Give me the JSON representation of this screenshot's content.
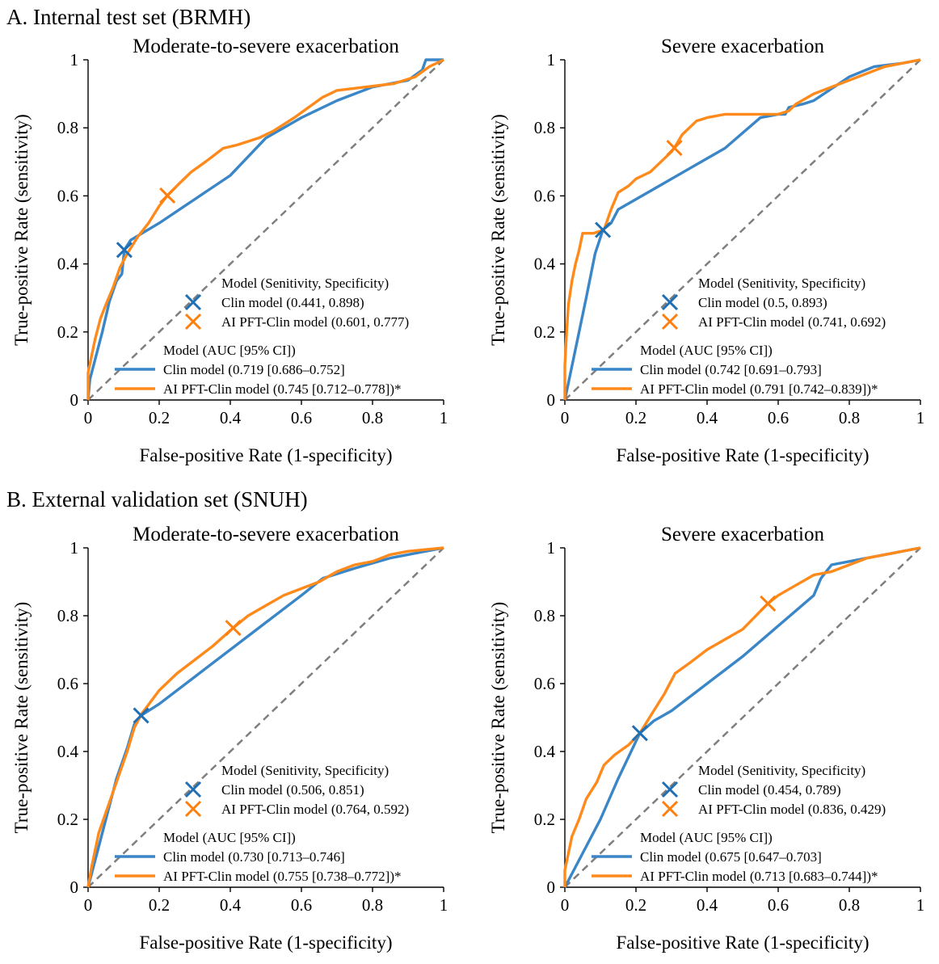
{
  "colors": {
    "clin": "#3a86c6",
    "ai": "#ff8a1c",
    "clin_marker": "#1f6fb4",
    "ai_marker": "#ff7f0e",
    "diag": "#7f7f7f"
  },
  "sections": [
    {
      "title": "A. Internal test set (BRMH)"
    },
    {
      "title": "B. External validation set (SNUH)"
    }
  ],
  "axes": {
    "xlabel": "False-positive Rate (1-specificity)",
    "ylabel": "True-positive Rate (sensitivity)",
    "xticks": [
      0,
      0.2,
      0.4,
      0.6,
      0.8,
      1
    ],
    "yticks": [
      0,
      0.2,
      0.4,
      0.6,
      0.8,
      1
    ],
    "xtick_labels": [
      "0",
      "0.2",
      "0.4",
      "0.6",
      "0.8",
      "1"
    ],
    "ytick_labels": [
      "0",
      "0.2",
      "0.4",
      "0.6",
      "0.8",
      "1"
    ]
  },
  "chart_data": [
    {
      "type": "line",
      "title": "Moderate-to-severe exacerbation",
      "xlabel": "False-positive Rate (1-specificity)",
      "ylabel": "True-positive Rate (sensitivity)",
      "xlim": [
        0,
        1
      ],
      "ylim": [
        0,
        1
      ],
      "marker_legend": {
        "title": "Model (Senitivity, Specificity)",
        "entries": [
          {
            "series": "clin",
            "label": "Clin model (0.441, 0.898)"
          },
          {
            "series": "ai",
            "label": "AI PFT-Clin model (0.601, 0.777)"
          }
        ]
      },
      "line_legend": {
        "title": "Model (AUC [95% CI])",
        "entries": [
          {
            "series": "clin",
            "label": "Clin model (0.719 [0.686–0.752]"
          },
          {
            "series": "ai",
            "label": "AI PFT-Clin model (0.745 [0.712–0.778])*"
          }
        ]
      },
      "markers": [
        {
          "series": "clin",
          "x": 0.102,
          "y": 0.441
        },
        {
          "series": "ai",
          "x": 0.223,
          "y": 0.601
        }
      ],
      "series": [
        {
          "key": "clin",
          "points": [
            [
              0,
              0
            ],
            [
              0.005,
              0.06
            ],
            [
              0.02,
              0.12
            ],
            [
              0.04,
              0.2
            ],
            [
              0.06,
              0.29
            ],
            [
              0.08,
              0.35
            ],
            [
              0.095,
              0.37
            ],
            [
              0.102,
              0.441
            ],
            [
              0.12,
              0.47
            ],
            [
              0.2,
              0.52
            ],
            [
              0.3,
              0.59
            ],
            [
              0.4,
              0.66
            ],
            [
              0.5,
              0.77
            ],
            [
              0.6,
              0.83
            ],
            [
              0.7,
              0.88
            ],
            [
              0.8,
              0.92
            ],
            [
              0.9,
              0.94
            ],
            [
              0.94,
              0.97
            ],
            [
              0.95,
              1.0
            ],
            [
              1,
              1
            ]
          ]
        },
        {
          "key": "ai",
          "points": [
            [
              0,
              0
            ],
            [
              0,
              0.08
            ],
            [
              0.01,
              0.13
            ],
            [
              0.02,
              0.18
            ],
            [
              0.035,
              0.24
            ],
            [
              0.05,
              0.28
            ],
            [
              0.07,
              0.33
            ],
            [
              0.09,
              0.39
            ],
            [
              0.11,
              0.43
            ],
            [
              0.14,
              0.48
            ],
            [
              0.17,
              0.52
            ],
            [
              0.2,
              0.57
            ],
            [
              0.223,
              0.601
            ],
            [
              0.26,
              0.64
            ],
            [
              0.29,
              0.67
            ],
            [
              0.33,
              0.7
            ],
            [
              0.38,
              0.74
            ],
            [
              0.42,
              0.75
            ],
            [
              0.48,
              0.77
            ],
            [
              0.52,
              0.79
            ],
            [
              0.58,
              0.83
            ],
            [
              0.62,
              0.86
            ],
            [
              0.66,
              0.89
            ],
            [
              0.7,
              0.91
            ],
            [
              0.78,
              0.92
            ],
            [
              0.86,
              0.93
            ],
            [
              0.92,
              0.95
            ],
            [
              0.96,
              0.98
            ],
            [
              1,
              1
            ]
          ]
        }
      ]
    },
    {
      "type": "line",
      "title": "Severe exacerbation",
      "xlabel": "False-positive Rate (1-specificity)",
      "ylabel": "True-positive Rate (sensitivity)",
      "xlim": [
        0,
        1
      ],
      "ylim": [
        0,
        1
      ],
      "marker_legend": {
        "title": "Model (Senitivity, Specificity)",
        "entries": [
          {
            "series": "clin",
            "label": "Clin model (0.5, 0.893)"
          },
          {
            "series": "ai",
            "label": "AI PFT-Clin model (0.741, 0.692)"
          }
        ]
      },
      "line_legend": {
        "title": "Model (AUC [95% CI])",
        "entries": [
          {
            "series": "clin",
            "label": "Clin model (0.742 [0.691–0.793]"
          },
          {
            "series": "ai",
            "label": "AI PFT-Clin model (0.791 [0.742–0.839])*"
          }
        ]
      },
      "markers": [
        {
          "series": "clin",
          "x": 0.107,
          "y": 0.5
        },
        {
          "series": "ai",
          "x": 0.308,
          "y": 0.741
        }
      ],
      "series": [
        {
          "key": "clin",
          "points": [
            [
              0,
              0
            ],
            [
              0.03,
              0.15
            ],
            [
              0.06,
              0.3
            ],
            [
              0.085,
              0.43
            ],
            [
              0.107,
              0.5
            ],
            [
              0.13,
              0.52
            ],
            [
              0.15,
              0.56
            ],
            [
              0.25,
              0.62
            ],
            [
              0.35,
              0.68
            ],
            [
              0.45,
              0.74
            ],
            [
              0.55,
              0.83
            ],
            [
              0.6,
              0.84
            ],
            [
              0.62,
              0.84
            ],
            [
              0.63,
              0.86
            ],
            [
              0.67,
              0.87
            ],
            [
              0.7,
              0.88
            ],
            [
              0.8,
              0.95
            ],
            [
              0.87,
              0.98
            ],
            [
              0.95,
              0.99
            ],
            [
              1,
              1
            ]
          ]
        },
        {
          "key": "ai",
          "points": [
            [
              0,
              0
            ],
            [
              0,
              0.1
            ],
            [
              0.005,
              0.2
            ],
            [
              0.01,
              0.28
            ],
            [
              0.02,
              0.35
            ],
            [
              0.03,
              0.4
            ],
            [
              0.04,
              0.44
            ],
            [
              0.05,
              0.49
            ],
            [
              0.08,
              0.49
            ],
            [
              0.11,
              0.5
            ],
            [
              0.13,
              0.56
            ],
            [
              0.15,
              0.61
            ],
            [
              0.18,
              0.63
            ],
            [
              0.2,
              0.65
            ],
            [
              0.24,
              0.67
            ],
            [
              0.27,
              0.7
            ],
            [
              0.3,
              0.73
            ],
            [
              0.308,
              0.741
            ],
            [
              0.33,
              0.78
            ],
            [
              0.37,
              0.82
            ],
            [
              0.4,
              0.83
            ],
            [
              0.45,
              0.84
            ],
            [
              0.6,
              0.84
            ],
            [
              0.63,
              0.85
            ],
            [
              0.65,
              0.87
            ],
            [
              0.7,
              0.9
            ],
            [
              0.75,
              0.92
            ],
            [
              0.8,
              0.94
            ],
            [
              0.85,
              0.96
            ],
            [
              0.9,
              0.98
            ],
            [
              0.95,
              0.99
            ],
            [
              1,
              1
            ]
          ]
        }
      ]
    },
    {
      "type": "line",
      "title": "Moderate-to-severe exacerbation",
      "xlabel": "False-positive Rate (1-specificity)",
      "ylabel": "True-positive Rate (sensitivity)",
      "xlim": [
        0,
        1
      ],
      "ylim": [
        0,
        1
      ],
      "marker_legend": {
        "title": "Model (Senitivity, Specificity)",
        "entries": [
          {
            "series": "clin",
            "label": "Clin model (0.506, 0.851)"
          },
          {
            "series": "ai",
            "label": "AI PFT-Clin model (0.764, 0.592)"
          }
        ]
      },
      "line_legend": {
        "title": "Model (AUC [95% CI])",
        "entries": [
          {
            "series": "clin",
            "label": "Clin model (0.730 [0.713–0.746]"
          },
          {
            "series": "ai",
            "label": "AI PFT-Clin model (0.755 [0.738–0.772])*"
          }
        ]
      },
      "markers": [
        {
          "series": "clin",
          "x": 0.149,
          "y": 0.506
        },
        {
          "series": "ai",
          "x": 0.408,
          "y": 0.764
        }
      ],
      "series": [
        {
          "key": "clin",
          "points": [
            [
              0,
              0
            ],
            [
              0.02,
              0.08
            ],
            [
              0.05,
              0.2
            ],
            [
              0.08,
              0.32
            ],
            [
              0.11,
              0.41
            ],
            [
              0.13,
              0.48
            ],
            [
              0.149,
              0.506
            ],
            [
              0.2,
              0.54
            ],
            [
              0.3,
              0.62
            ],
            [
              0.4,
              0.7
            ],
            [
              0.5,
              0.78
            ],
            [
              0.6,
              0.86
            ],
            [
              0.66,
              0.91
            ],
            [
              0.75,
              0.94
            ],
            [
              0.85,
              0.97
            ],
            [
              0.95,
              0.99
            ],
            [
              1,
              1
            ]
          ]
        },
        {
          "key": "ai",
          "points": [
            [
              0,
              0
            ],
            [
              0.01,
              0.06
            ],
            [
              0.02,
              0.11
            ],
            [
              0.03,
              0.16
            ],
            [
              0.05,
              0.22
            ],
            [
              0.07,
              0.28
            ],
            [
              0.09,
              0.34
            ],
            [
              0.11,
              0.4
            ],
            [
              0.13,
              0.47
            ],
            [
              0.15,
              0.51
            ],
            [
              0.2,
              0.58
            ],
            [
              0.25,
              0.63
            ],
            [
              0.3,
              0.67
            ],
            [
              0.35,
              0.71
            ],
            [
              0.408,
              0.764
            ],
            [
              0.45,
              0.8
            ],
            [
              0.5,
              0.83
            ],
            [
              0.55,
              0.86
            ],
            [
              0.6,
              0.88
            ],
            [
              0.65,
              0.9
            ],
            [
              0.7,
              0.93
            ],
            [
              0.75,
              0.95
            ],
            [
              0.8,
              0.96
            ],
            [
              0.85,
              0.98
            ],
            [
              0.9,
              0.99
            ],
            [
              0.95,
              0.995
            ],
            [
              1,
              1
            ]
          ]
        }
      ]
    },
    {
      "type": "line",
      "title": "Severe exacerbation",
      "xlabel": "False-positive Rate (1-specificity)",
      "ylabel": "True-positive Rate (sensitivity)",
      "xlim": [
        0,
        1
      ],
      "ylim": [
        0,
        1
      ],
      "marker_legend": {
        "title": "Model (Senitivity, Specificity)",
        "entries": [
          {
            "series": "clin",
            "label": "Clin model (0.454, 0.789)"
          },
          {
            "series": "ai",
            "label": "AI PFT-Clin model (0.836, 0.429)"
          }
        ]
      },
      "line_legend": {
        "title": "Model (AUC [95% CI])",
        "entries": [
          {
            "series": "clin",
            "label": "Clin model (0.675 [0.647–0.703]"
          },
          {
            "series": "ai",
            "label": "AI PFT-Clin model (0.713 [0.683–0.744])*"
          }
        ]
      },
      "markers": [
        {
          "series": "clin",
          "x": 0.211,
          "y": 0.454
        },
        {
          "series": "ai",
          "x": 0.571,
          "y": 0.836
        }
      ],
      "series": [
        {
          "key": "clin",
          "points": [
            [
              0,
              0
            ],
            [
              0.05,
              0.1
            ],
            [
              0.1,
              0.2
            ],
            [
              0.15,
              0.32
            ],
            [
              0.211,
              0.454
            ],
            [
              0.25,
              0.49
            ],
            [
              0.3,
              0.52
            ],
            [
              0.4,
              0.6
            ],
            [
              0.5,
              0.68
            ],
            [
              0.6,
              0.77
            ],
            [
              0.7,
              0.86
            ],
            [
              0.72,
              0.91
            ],
            [
              0.75,
              0.95
            ],
            [
              0.8,
              0.96
            ],
            [
              0.85,
              0.97
            ],
            [
              0.9,
              0.98
            ],
            [
              0.95,
              0.99
            ],
            [
              1,
              1
            ]
          ]
        },
        {
          "key": "ai",
          "points": [
            [
              0,
              0
            ],
            [
              0,
              0.05
            ],
            [
              0.01,
              0.1
            ],
            [
              0.02,
              0.15
            ],
            [
              0.04,
              0.2
            ],
            [
              0.06,
              0.26
            ],
            [
              0.09,
              0.31
            ],
            [
              0.11,
              0.36
            ],
            [
              0.14,
              0.39
            ],
            [
              0.18,
              0.42
            ],
            [
              0.211,
              0.454
            ],
            [
              0.25,
              0.52
            ],
            [
              0.28,
              0.57
            ],
            [
              0.31,
              0.63
            ],
            [
              0.35,
              0.66
            ],
            [
              0.4,
              0.7
            ],
            [
              0.45,
              0.73
            ],
            [
              0.5,
              0.76
            ],
            [
              0.571,
              0.836
            ],
            [
              0.6,
              0.86
            ],
            [
              0.65,
              0.89
            ],
            [
              0.7,
              0.92
            ],
            [
              0.75,
              0.93
            ],
            [
              0.8,
              0.95
            ],
            [
              0.85,
              0.97
            ],
            [
              0.9,
              0.98
            ],
            [
              0.95,
              0.99
            ],
            [
              1,
              1
            ]
          ]
        }
      ]
    }
  ]
}
